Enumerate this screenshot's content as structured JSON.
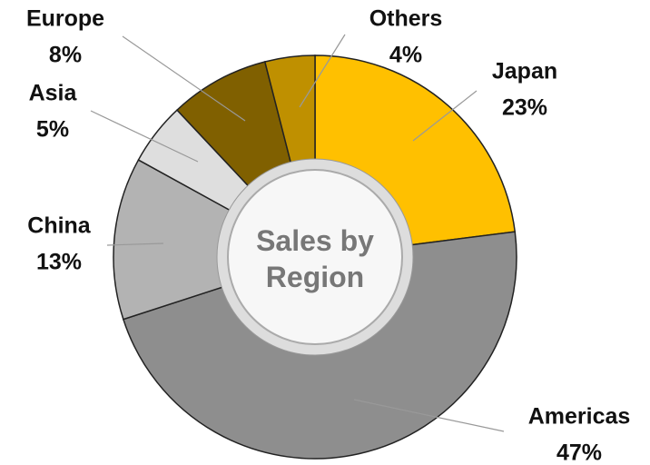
{
  "chart_data": {
    "type": "donut",
    "title": "Sales by Region",
    "categories": [
      "Japan",
      "Americas",
      "China",
      "Asia",
      "Europe",
      "Others"
    ],
    "values": [
      23,
      47,
      13,
      5,
      8,
      4
    ],
    "value_labels": [
      "23%",
      "47%",
      "13%",
      "5%",
      "8%",
      "4%"
    ],
    "colors": [
      "#ffc000",
      "#8e8e8e",
      "#b3b3b3",
      "#dedede",
      "#806000",
      "#bf9000"
    ]
  }
}
